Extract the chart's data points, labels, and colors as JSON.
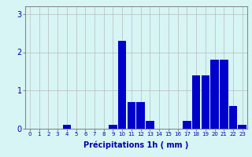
{
  "hours": [
    0,
    1,
    2,
    3,
    4,
    5,
    6,
    7,
    8,
    9,
    10,
    11,
    12,
    13,
    14,
    15,
    16,
    17,
    18,
    19,
    20,
    21,
    22,
    23
  ],
  "values": [
    0,
    0,
    0,
    0,
    0.1,
    0,
    0,
    0,
    0,
    0.1,
    2.3,
    0.7,
    0.7,
    0.2,
    0,
    0,
    0,
    0.2,
    1.4,
    1.4,
    1.8,
    1.8,
    0.6,
    0.1
  ],
  "bar_color": "#0000cc",
  "background_color": "#d8f5f5",
  "grid_color": "#bbbbbb",
  "xlabel": "Précipitations 1h ( mm )",
  "ylim": [
    0,
    3.2
  ],
  "yticks": [
    0,
    1,
    2,
    3
  ],
  "xlim": [
    -0.5,
    23.5
  ],
  "xlabel_fontsize": 7,
  "tick_fontsize": 5,
  "ytick_fontsize": 7
}
